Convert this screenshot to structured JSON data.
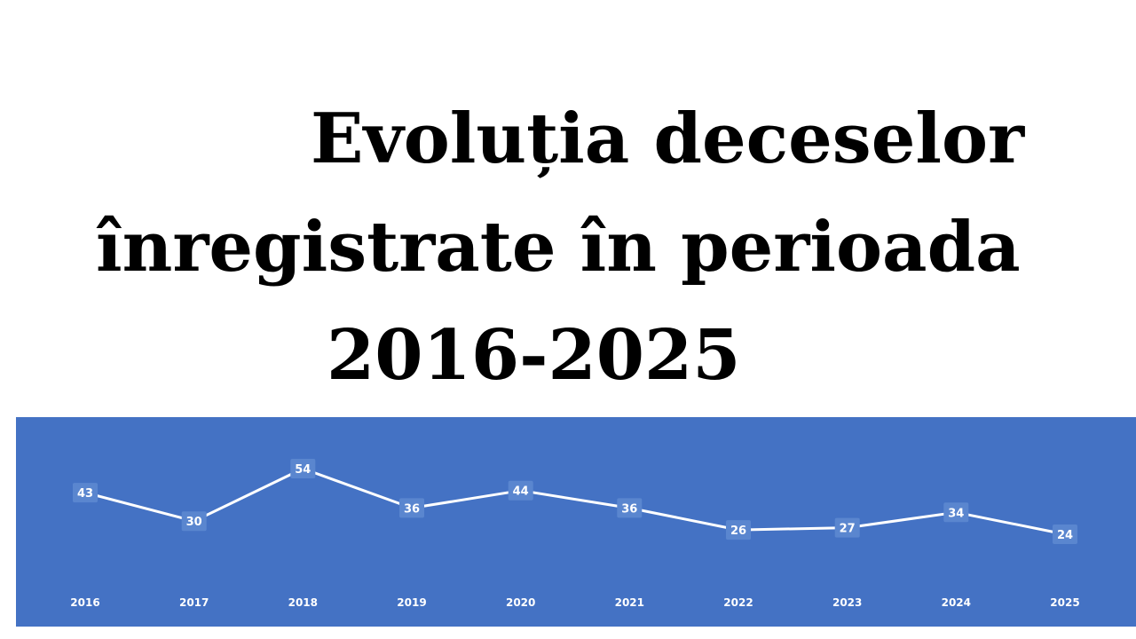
{
  "title": {
    "line1": "Evoluția deceselor",
    "line2": "înregistrate în perioada",
    "line3": "2016-2025"
  },
  "colors": {
    "panel_background": "#4472c4",
    "line": "#ffffff",
    "text": "#ffffff"
  },
  "chart_data": {
    "type": "line",
    "title": "Evoluția deceselor înregistrate în perioada 2016-2025",
    "xlabel": "",
    "ylabel": "",
    "categories": [
      "2016",
      "2017",
      "2018",
      "2019",
      "2020",
      "2021",
      "2022",
      "2023",
      "2024",
      "2025"
    ],
    "series": [
      {
        "values": [
          43,
          30,
          54,
          36,
          44,
          36,
          26,
          27,
          34,
          24
        ],
        "data_labels": [
          "43",
          "30",
          "54",
          "36",
          "44",
          "36",
          "26",
          "27",
          "34",
          "24"
        ]
      }
    ],
    "ylim": [
      0,
      60
    ],
    "grid": false,
    "legend": "none"
  }
}
